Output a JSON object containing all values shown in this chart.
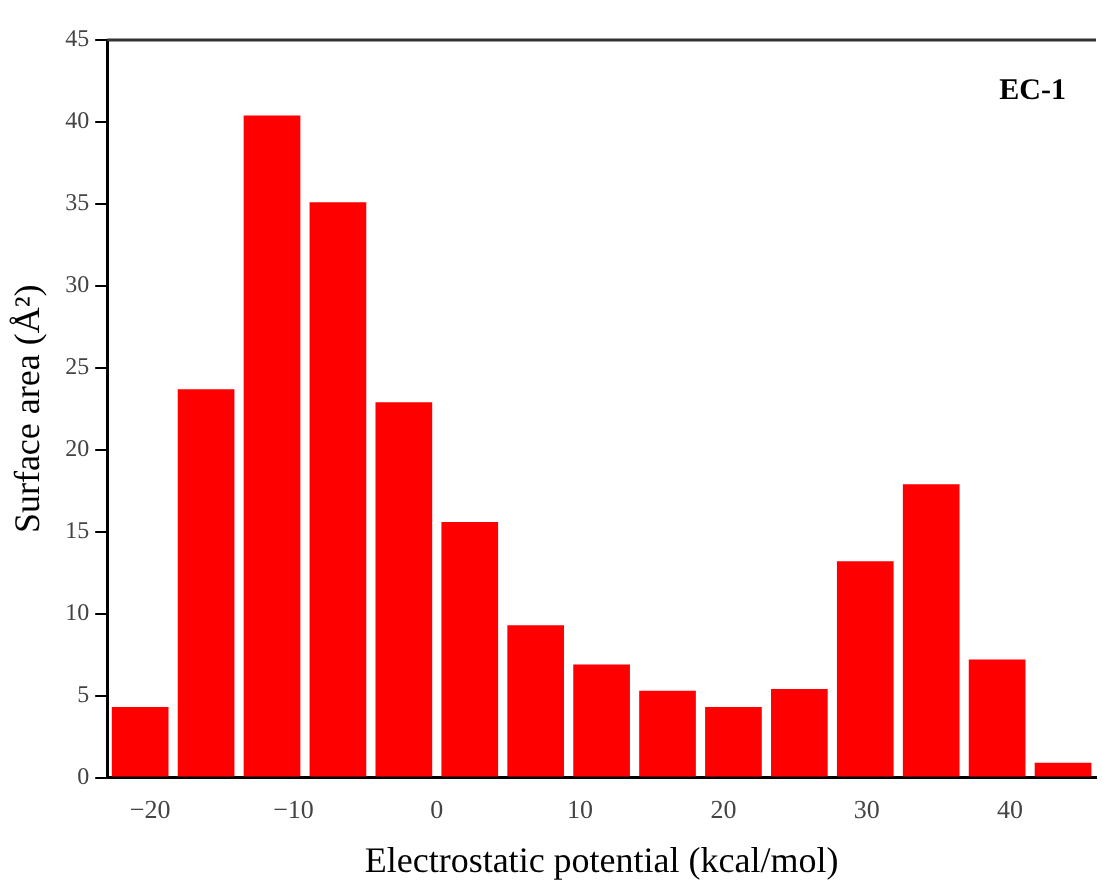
{
  "chart_data": {
    "type": "histogram",
    "xlabel": "Electrostatic potential (kcal/mol)",
    "ylabel": "Surface area (Å²)",
    "annotations": [
      "EC-1"
    ],
    "bins": [
      -23,
      -18.4,
      -13.8,
      -9.2,
      -4.6,
      0,
      4.6,
      9.2,
      13.8,
      18.4,
      23,
      27.6,
      32.2,
      36.8,
      41.4,
      46
    ],
    "values": [
      4.3,
      23.7,
      40.4,
      35.1,
      22.9,
      15.6,
      9.3,
      6.9,
      5.3,
      4.3,
      5.4,
      13.2,
      17.9,
      7.2,
      0.9
    ],
    "color": "#ff0000",
    "xlim": [
      -23,
      46
    ],
    "xticks": [
      -20,
      -10,
      0,
      10,
      20,
      30,
      40
    ],
    "ylim": [
      0,
      45
    ],
    "yticks": [
      0,
      5,
      10,
      15,
      20,
      25,
      30,
      35,
      40,
      45
    ],
    "grid": false,
    "legend": false
  }
}
